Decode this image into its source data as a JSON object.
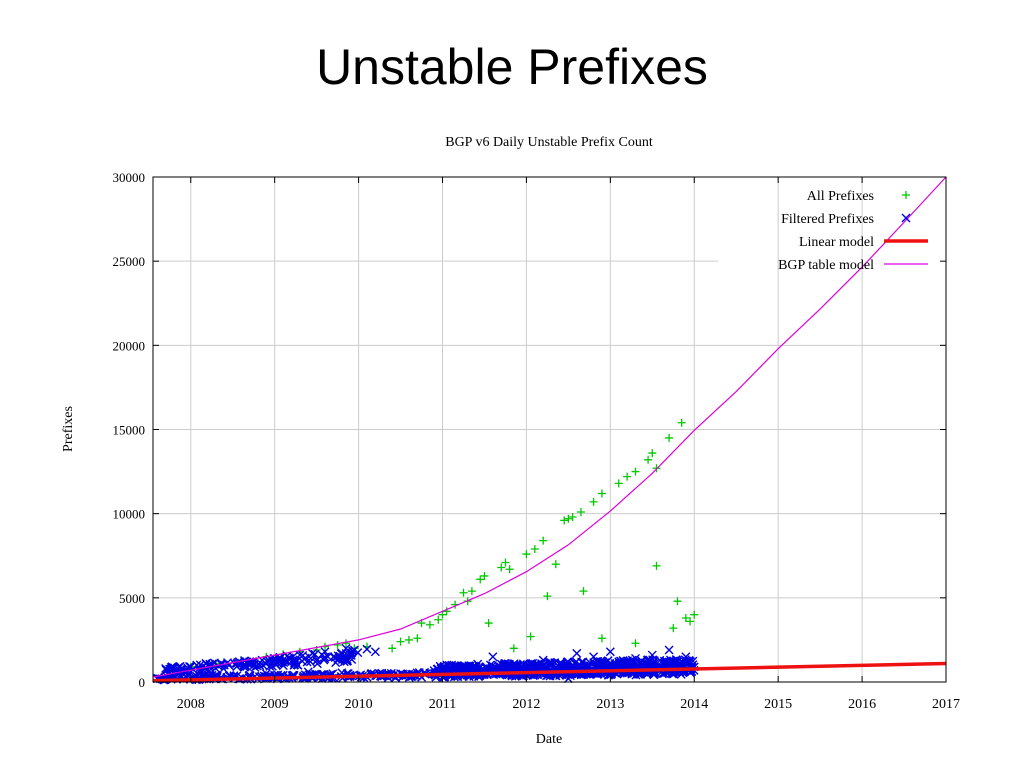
{
  "slide": {
    "title": "Unstable Prefixes"
  },
  "chart_data": {
    "type": "scatter",
    "title": "BGP v6 Daily Unstable Prefix Count",
    "xlabel": "Date",
    "ylabel": "Prefixes",
    "xlim": [
      2007.55,
      2017.0
    ],
    "ylim": [
      0,
      30000
    ],
    "x_ticks": [
      "2008",
      "2009",
      "2010",
      "2011",
      "2012",
      "2013",
      "2014",
      "2015",
      "2016",
      "2017"
    ],
    "y_ticks": [
      "0",
      "5000",
      "10000",
      "15000",
      "20000",
      "25000",
      "30000"
    ],
    "grid": true,
    "legend_position": "top-right",
    "colors": {
      "all_prefixes": "#00c800",
      "filtered_prefixes": "#0000e0",
      "linear_model": "#ee1111",
      "bgp_table_model": "#dd00dd",
      "grid": "#cccccc"
    },
    "series": [
      {
        "name": "All Prefixes",
        "kind": "points",
        "marker": "plus",
        "points": [
          [
            2008.0,
            900
          ],
          [
            2008.3,
            1100
          ],
          [
            2008.6,
            1300
          ],
          [
            2008.9,
            1500
          ],
          [
            2009.1,
            1650
          ],
          [
            2009.3,
            1800
          ],
          [
            2009.5,
            1900
          ],
          [
            2009.6,
            2100
          ],
          [
            2009.75,
            2200
          ],
          [
            2009.85,
            2300
          ],
          [
            2009.95,
            2000
          ],
          [
            2010.1,
            2100
          ],
          [
            2010.4,
            2000
          ],
          [
            2010.5,
            2400
          ],
          [
            2010.6,
            2500
          ],
          [
            2010.7,
            2600
          ],
          [
            2010.75,
            3500
          ],
          [
            2010.85,
            3400
          ],
          [
            2010.95,
            3700
          ],
          [
            2011.0,
            4000
          ],
          [
            2011.05,
            4200
          ],
          [
            2011.15,
            4600
          ],
          [
            2011.25,
            5300
          ],
          [
            2011.3,
            4800
          ],
          [
            2011.35,
            5400
          ],
          [
            2011.45,
            6100
          ],
          [
            2011.5,
            6300
          ],
          [
            2011.55,
            3500
          ],
          [
            2011.7,
            6800
          ],
          [
            2011.75,
            7100
          ],
          [
            2011.8,
            6700
          ],
          [
            2011.85,
            2000
          ],
          [
            2012.0,
            7600
          ],
          [
            2012.05,
            2700
          ],
          [
            2012.1,
            7900
          ],
          [
            2012.2,
            8400
          ],
          [
            2012.25,
            5100
          ],
          [
            2012.35,
            7000
          ],
          [
            2012.45,
            9600
          ],
          [
            2012.5,
            9700
          ],
          [
            2012.55,
            9800
          ],
          [
            2012.65,
            10100
          ],
          [
            2012.68,
            5400
          ],
          [
            2012.8,
            10700
          ],
          [
            2012.9,
            11200
          ],
          [
            2013.1,
            11800
          ],
          [
            2013.2,
            12200
          ],
          [
            2013.3,
            12500
          ],
          [
            2013.45,
            13200
          ],
          [
            2013.5,
            13600
          ],
          [
            2013.55,
            12700
          ],
          [
            2013.55,
            6900
          ],
          [
            2013.7,
            14500
          ],
          [
            2013.85,
            15400
          ],
          [
            2013.8,
            4800
          ],
          [
            2013.9,
            3800
          ],
          [
            2013.75,
            3200
          ],
          [
            2012.9,
            2600
          ],
          [
            2013.3,
            2300
          ],
          [
            2014.0,
            4000
          ],
          [
            2013.95,
            3600
          ]
        ]
      },
      {
        "name": "Filtered Prefixes",
        "kind": "points",
        "marker": "cross",
        "points": [
          [
            2007.6,
            200
          ],
          [
            2007.7,
            800
          ],
          [
            2007.85,
            600
          ],
          [
            2008.0,
            900
          ],
          [
            2008.2,
            750
          ],
          [
            2008.4,
            1000
          ],
          [
            2008.55,
            1100
          ],
          [
            2008.7,
            1200
          ],
          [
            2008.85,
            1300
          ],
          [
            2009.0,
            1400
          ],
          [
            2009.15,
            1550
          ],
          [
            2009.3,
            1600
          ],
          [
            2009.45,
            1700
          ],
          [
            2009.6,
            1800
          ],
          [
            2009.7,
            1500
          ],
          [
            2009.85,
            2000
          ],
          [
            2009.95,
            1900
          ],
          [
            2010.1,
            1950
          ],
          [
            2010.2,
            1800
          ],
          [
            2008.3,
            400
          ],
          [
            2008.9,
            500
          ],
          [
            2009.4,
            600
          ],
          [
            2009.8,
            550
          ],
          [
            2010.3,
            400
          ],
          [
            2010.6,
            450
          ],
          [
            2010.9,
            500
          ],
          [
            2011.2,
            700
          ],
          [
            2011.4,
            900
          ],
          [
            2011.6,
            1500
          ],
          [
            2011.8,
            1000
          ],
          [
            2012.0,
            800
          ],
          [
            2012.2,
            1300
          ],
          [
            2012.4,
            1100
          ],
          [
            2012.6,
            1700
          ],
          [
            2012.8,
            1500
          ],
          [
            2013.0,
            1800
          ],
          [
            2013.1,
            1200
          ],
          [
            2013.3,
            1400
          ],
          [
            2013.5,
            1600
          ],
          [
            2013.7,
            1900
          ],
          [
            2013.9,
            1500
          ],
          [
            2014.0,
            900
          ],
          [
            2011.0,
            300
          ],
          [
            2012.5,
            200
          ],
          [
            2013.2,
            600
          ],
          [
            2013.8,
            700
          ],
          [
            2012.0,
            400
          ],
          [
            2011.5,
            500
          ]
        ],
        "bands": [
          {
            "x": [
              2007.6,
              2014.0
            ],
            "low": [
              100,
              450
            ],
            "high": [
              350,
              800
            ],
            "count": 420
          },
          {
            "x": [
              2007.7,
              2010.0
            ],
            "low": [
              500,
              1200
            ],
            "high": [
              900,
              1900
            ],
            "count": 160
          },
          {
            "x": [
              2010.9,
              2014.0
            ],
            "low": [
              400,
              550
            ],
            "high": [
              1000,
              1400
            ],
            "count": 520
          }
        ]
      },
      {
        "name": "Linear model",
        "kind": "line",
        "x": [
          2007.55,
          2017.0
        ],
        "y": [
          80,
          1100
        ]
      },
      {
        "name": "BGP table model",
        "kind": "curve",
        "x": [
          2007.55,
          2008.0,
          2008.5,
          2009.0,
          2009.5,
          2010.0,
          2010.5,
          2011.0,
          2011.5,
          2012.0,
          2012.5,
          2013.0,
          2013.5,
          2014.0,
          2014.5,
          2015.0,
          2015.5,
          2016.0,
          2016.5,
          2017.0
        ],
        "y": [
          300,
          700,
          1150,
          1600,
          2050,
          2500,
          3150,
          4200,
          5250,
          6550,
          8150,
          10150,
          12400,
          14950,
          17250,
          19800,
          22150,
          24650,
          27300,
          30000
        ]
      }
    ]
  }
}
